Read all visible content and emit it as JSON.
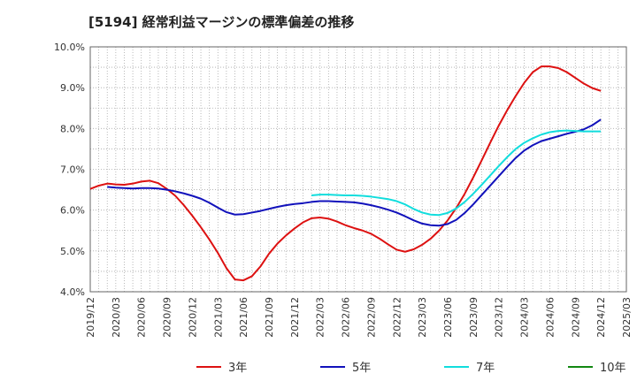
{
  "chart_data": {
    "type": "line",
    "title": "[5194]  経常利益マージンの標準偏差の推移",
    "xlabel": "",
    "ylabel": "",
    "ylim": [
      4.0,
      10.0
    ],
    "yticks": [
      "4.0%",
      "5.0%",
      "6.0%",
      "7.0%",
      "8.0%",
      "9.0%",
      "10.0%"
    ],
    "xticks": [
      "2019/12",
      "2020/03",
      "2020/06",
      "2020/09",
      "2020/12",
      "2021/03",
      "2021/06",
      "2021/09",
      "2021/12",
      "2022/03",
      "2022/06",
      "2022/09",
      "2022/12",
      "2023/03",
      "2023/06",
      "2023/09",
      "2023/12",
      "2024/03",
      "2024/06",
      "2024/09",
      "2024/12",
      "2025/03"
    ],
    "grid": true,
    "legend_position": "bottom",
    "series": [
      {
        "name": "3年",
        "color": "#dd1111",
        "points": [
          [
            "2019/12",
            6.52
          ],
          [
            "2020/01",
            6.6
          ],
          [
            "2020/02",
            6.65
          ],
          [
            "2020/03",
            6.63
          ],
          [
            "2020/04",
            6.62
          ],
          [
            "2020/05",
            6.65
          ],
          [
            "2020/06",
            6.7
          ],
          [
            "2020/07",
            6.72
          ],
          [
            "2020/08",
            6.66
          ],
          [
            "2020/09",
            6.52
          ],
          [
            "2020/10",
            6.35
          ],
          [
            "2020/11",
            6.12
          ],
          [
            "2020/12",
            5.86
          ],
          [
            "2021/01",
            5.58
          ],
          [
            "2021/02",
            5.28
          ],
          [
            "2021/03",
            4.95
          ],
          [
            "2021/04",
            4.58
          ],
          [
            "2021/05",
            4.3
          ],
          [
            "2021/06",
            4.28
          ],
          [
            "2021/07",
            4.38
          ],
          [
            "2021/08",
            4.62
          ],
          [
            "2021/09",
            4.93
          ],
          [
            "2021/10",
            5.18
          ],
          [
            "2021/11",
            5.38
          ],
          [
            "2021/12",
            5.55
          ],
          [
            "2022/01",
            5.7
          ],
          [
            "2022/02",
            5.8
          ],
          [
            "2022/03",
            5.82
          ],
          [
            "2022/04",
            5.79
          ],
          [
            "2022/05",
            5.72
          ],
          [
            "2022/06",
            5.63
          ],
          [
            "2022/07",
            5.56
          ],
          [
            "2022/08",
            5.5
          ],
          [
            "2022/09",
            5.42
          ],
          [
            "2022/10",
            5.3
          ],
          [
            "2022/11",
            5.16
          ],
          [
            "2022/12",
            5.03
          ],
          [
            "2023/01",
            4.98
          ],
          [
            "2023/02",
            5.04
          ],
          [
            "2023/03",
            5.15
          ],
          [
            "2023/04",
            5.3
          ],
          [
            "2023/05",
            5.5
          ],
          [
            "2023/06",
            5.75
          ],
          [
            "2023/07",
            6.05
          ],
          [
            "2023/08",
            6.4
          ],
          [
            "2023/09",
            6.8
          ],
          [
            "2023/10",
            7.22
          ],
          [
            "2023/11",
            7.65
          ],
          [
            "2023/12",
            8.07
          ],
          [
            "2024/01",
            8.45
          ],
          [
            "2024/02",
            8.8
          ],
          [
            "2024/03",
            9.12
          ],
          [
            "2024/04",
            9.38
          ],
          [
            "2024/05",
            9.52
          ],
          [
            "2024/06",
            9.52
          ],
          [
            "2024/07",
            9.48
          ],
          [
            "2024/08",
            9.38
          ],
          [
            "2024/09",
            9.24
          ],
          [
            "2024/10",
            9.1
          ],
          [
            "2024/11",
            8.99
          ],
          [
            "2024/12",
            8.92
          ]
        ]
      },
      {
        "name": "5年",
        "color": "#1111bb",
        "points": [
          [
            "2020/02",
            6.57
          ],
          [
            "2020/03",
            6.55
          ],
          [
            "2020/04",
            6.54
          ],
          [
            "2020/05",
            6.53
          ],
          [
            "2020/06",
            6.54
          ],
          [
            "2020/07",
            6.54
          ],
          [
            "2020/08",
            6.53
          ],
          [
            "2020/09",
            6.5
          ],
          [
            "2020/10",
            6.46
          ],
          [
            "2020/11",
            6.41
          ],
          [
            "2020/12",
            6.35
          ],
          [
            "2021/01",
            6.28
          ],
          [
            "2021/02",
            6.18
          ],
          [
            "2021/03",
            6.06
          ],
          [
            "2021/04",
            5.95
          ],
          [
            "2021/05",
            5.89
          ],
          [
            "2021/06",
            5.9
          ],
          [
            "2021/07",
            5.94
          ],
          [
            "2021/08",
            5.98
          ],
          [
            "2021/09",
            6.03
          ],
          [
            "2021/10",
            6.08
          ],
          [
            "2021/11",
            6.12
          ],
          [
            "2021/12",
            6.15
          ],
          [
            "2022/01",
            6.17
          ],
          [
            "2022/02",
            6.2
          ],
          [
            "2022/03",
            6.22
          ],
          [
            "2022/04",
            6.22
          ],
          [
            "2022/05",
            6.21
          ],
          [
            "2022/06",
            6.2
          ],
          [
            "2022/07",
            6.19
          ],
          [
            "2022/08",
            6.16
          ],
          [
            "2022/09",
            6.12
          ],
          [
            "2022/10",
            6.07
          ],
          [
            "2022/11",
            6.01
          ],
          [
            "2022/12",
            5.94
          ],
          [
            "2023/01",
            5.85
          ],
          [
            "2023/02",
            5.75
          ],
          [
            "2023/03",
            5.67
          ],
          [
            "2023/04",
            5.63
          ],
          [
            "2023/05",
            5.62
          ],
          [
            "2023/06",
            5.66
          ],
          [
            "2023/07",
            5.76
          ],
          [
            "2023/08",
            5.93
          ],
          [
            "2023/09",
            6.14
          ],
          [
            "2023/10",
            6.37
          ],
          [
            "2023/11",
            6.6
          ],
          [
            "2023/12",
            6.83
          ],
          [
            "2024/01",
            7.06
          ],
          [
            "2024/02",
            7.28
          ],
          [
            "2024/03",
            7.46
          ],
          [
            "2024/04",
            7.59
          ],
          [
            "2024/05",
            7.69
          ],
          [
            "2024/06",
            7.75
          ],
          [
            "2024/07",
            7.81
          ],
          [
            "2024/08",
            7.87
          ],
          [
            "2024/09",
            7.92
          ],
          [
            "2024/10",
            7.98
          ],
          [
            "2024/11",
            8.08
          ],
          [
            "2024/12",
            8.22
          ]
        ]
      },
      {
        "name": "7年",
        "color": "#11dddd",
        "points": [
          [
            "2022/02",
            6.36
          ],
          [
            "2022/03",
            6.38
          ],
          [
            "2022/04",
            6.38
          ],
          [
            "2022/05",
            6.37
          ],
          [
            "2022/06",
            6.36
          ],
          [
            "2022/07",
            6.36
          ],
          [
            "2022/08",
            6.35
          ],
          [
            "2022/09",
            6.33
          ],
          [
            "2022/10",
            6.3
          ],
          [
            "2022/11",
            6.27
          ],
          [
            "2022/12",
            6.22
          ],
          [
            "2023/01",
            6.14
          ],
          [
            "2023/02",
            6.03
          ],
          [
            "2023/03",
            5.94
          ],
          [
            "2023/04",
            5.89
          ],
          [
            "2023/05",
            5.88
          ],
          [
            "2023/06",
            5.93
          ],
          [
            "2023/07",
            6.04
          ],
          [
            "2023/08",
            6.2
          ],
          [
            "2023/09",
            6.4
          ],
          [
            "2023/10",
            6.62
          ],
          [
            "2023/11",
            6.85
          ],
          [
            "2023/12",
            7.08
          ],
          [
            "2024/01",
            7.3
          ],
          [
            "2024/02",
            7.5
          ],
          [
            "2024/03",
            7.65
          ],
          [
            "2024/04",
            7.76
          ],
          [
            "2024/05",
            7.85
          ],
          [
            "2024/06",
            7.91
          ],
          [
            "2024/07",
            7.94
          ],
          [
            "2024/08",
            7.95
          ],
          [
            "2024/09",
            7.94
          ],
          [
            "2024/10",
            7.93
          ],
          [
            "2024/11",
            7.93
          ],
          [
            "2024/12",
            7.93
          ]
        ]
      },
      {
        "name": "10年",
        "color": "#118811",
        "points": []
      }
    ]
  }
}
